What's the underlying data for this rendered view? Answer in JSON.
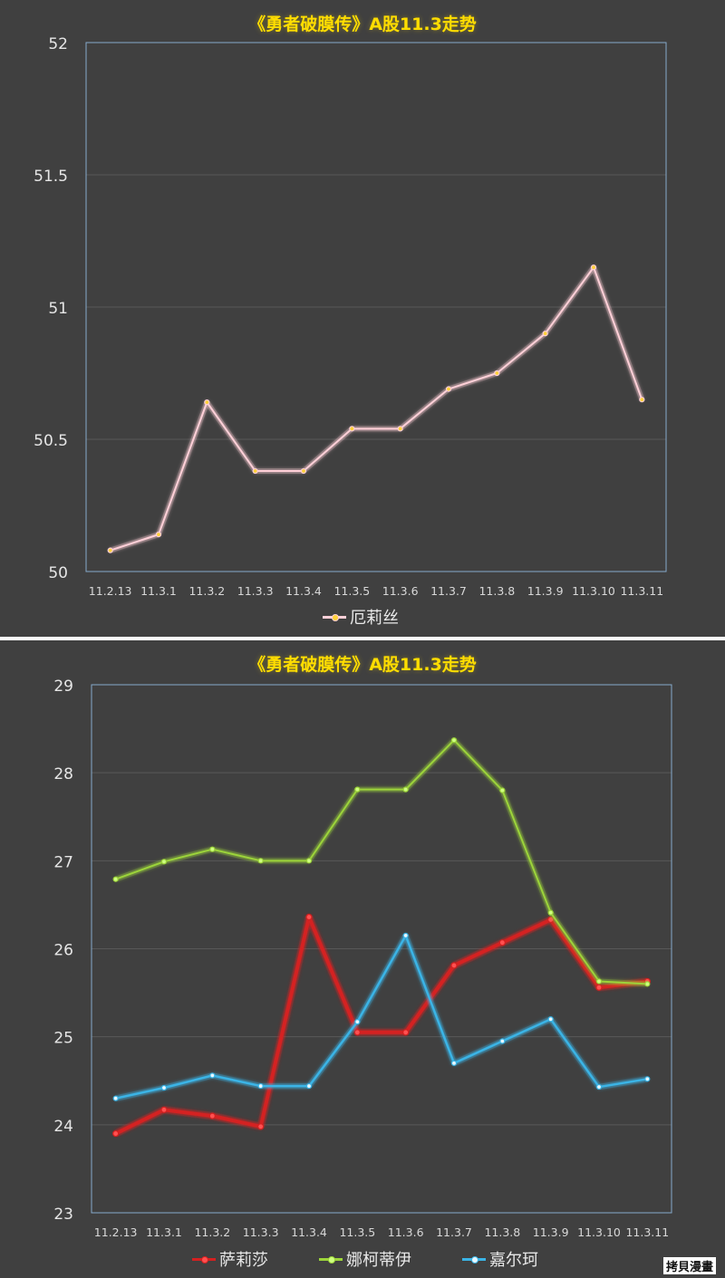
{
  "watermark": "拷貝漫畫",
  "chart_data": [
    {
      "type": "line",
      "title": "《勇者破膜传》A股11.3走势",
      "categories": [
        "11.2.13",
        "11.3.1",
        "11.3.2",
        "11.3.3",
        "11.3.4",
        "11.3.5",
        "11.3.6",
        "11.3.7",
        "11.3.8",
        "11.3.9",
        "11.3.10",
        "11.3.11"
      ],
      "ylim": [
        50,
        52
      ],
      "yticks": [
        "50",
        "50.5",
        "51",
        "51.5",
        "52"
      ],
      "grid": true,
      "legend_position": "bottom",
      "series": [
        {
          "name": "厄莉丝",
          "color": "#ffd0d8",
          "values": [
            50.08,
            50.14,
            50.64,
            50.38,
            50.38,
            50.54,
            50.54,
            50.69,
            50.75,
            50.9,
            51.15,
            50.65
          ]
        }
      ]
    },
    {
      "type": "line",
      "title": "《勇者破膜传》A股11.3走势",
      "categories": [
        "11.2.13",
        "11.3.1",
        "11.3.2",
        "11.3.3",
        "11.3.4",
        "11.3.5",
        "11.3.6",
        "11.3.7",
        "11.3.8",
        "11.3.9",
        "11.3.10",
        "11.3.11"
      ],
      "ylim": [
        23,
        29
      ],
      "yticks": [
        "23",
        "24",
        "25",
        "26",
        "27",
        "28",
        "29"
      ],
      "grid": true,
      "legend_position": "bottom",
      "series": [
        {
          "name": "萨莉莎",
          "color": "#d42020",
          "values": [
            23.9,
            24.17,
            24.1,
            23.98,
            26.36,
            25.05,
            25.05,
            25.81,
            26.07,
            26.33,
            25.56,
            25.63
          ]
        },
        {
          "name": "娜柯蒂伊",
          "color": "#9cd43a",
          "values": [
            26.79,
            26.99,
            27.13,
            27.0,
            27.0,
            27.81,
            27.81,
            28.37,
            27.8,
            26.41,
            25.63,
            25.6
          ]
        },
        {
          "name": "嘉尔珂",
          "color": "#3ab4e6",
          "values": [
            24.3,
            24.42,
            24.56,
            24.44,
            24.44,
            25.17,
            26.15,
            24.7,
            24.95,
            25.2,
            24.43,
            24.52
          ]
        }
      ]
    }
  ]
}
